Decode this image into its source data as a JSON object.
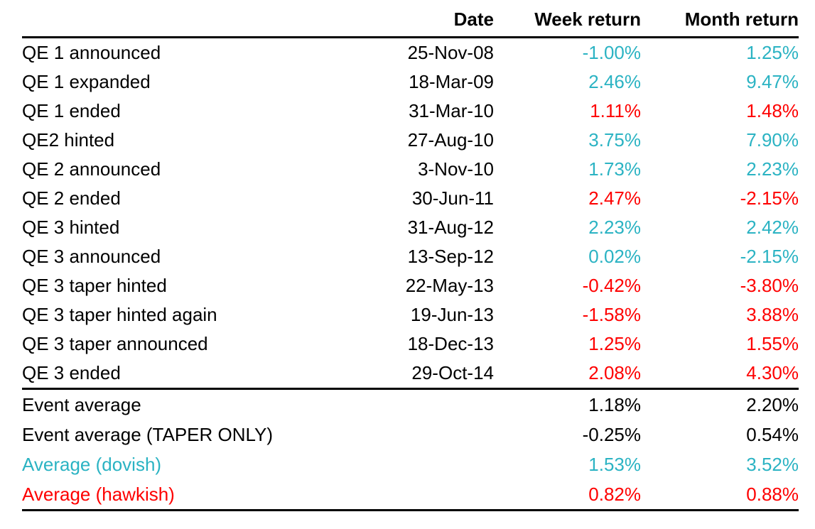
{
  "chart_data": {
    "type": "table",
    "columns": [
      "",
      "Date",
      "Week return",
      "Month return"
    ],
    "rows": [
      {
        "label": "QE 1 announced",
        "date": "25-Nov-08",
        "week_return": "-1.00%",
        "month_return": "1.25%",
        "tone": "dovish"
      },
      {
        "label": "QE 1 expanded",
        "date": "18-Mar-09",
        "week_return": "2.46%",
        "month_return": "9.47%",
        "tone": "dovish"
      },
      {
        "label": "QE 1 ended",
        "date": "31-Mar-10",
        "week_return": "1.11%",
        "month_return": "1.48%",
        "tone": "hawkish"
      },
      {
        "label": "QE2 hinted",
        "date": "27-Aug-10",
        "week_return": "3.75%",
        "month_return": "7.90%",
        "tone": "dovish"
      },
      {
        "label": "QE 2 announced",
        "date": "3-Nov-10",
        "week_return": "1.73%",
        "month_return": "2.23%",
        "tone": "dovish"
      },
      {
        "label": "QE 2 ended",
        "date": "30-Jun-11",
        "week_return": "2.47%",
        "month_return": "-2.15%",
        "tone": "hawkish"
      },
      {
        "label": "QE 3 hinted",
        "date": "31-Aug-12",
        "week_return": "2.23%",
        "month_return": "2.42%",
        "tone": "dovish"
      },
      {
        "label": "QE 3 announced",
        "date": "13-Sep-12",
        "week_return": "0.02%",
        "month_return": "-2.15%",
        "tone": "dovish"
      },
      {
        "label": "QE 3 taper hinted",
        "date": "22-May-13",
        "week_return": "-0.42%",
        "month_return": "-3.80%",
        "tone": "hawkish"
      },
      {
        "label": "QE 3 taper hinted again",
        "date": "19-Jun-13",
        "week_return": "-1.58%",
        "month_return": "3.88%",
        "tone": "hawkish"
      },
      {
        "label": "QE 3 taper announced",
        "date": "18-Dec-13",
        "week_return": "1.25%",
        "month_return": "1.55%",
        "tone": "hawkish"
      },
      {
        "label": "QE 3 ended",
        "date": "29-Oct-14",
        "week_return": "2.08%",
        "month_return": "4.30%",
        "tone": "hawkish"
      }
    ],
    "summary_rows": [
      {
        "label": "Event average",
        "date": "",
        "week_return": "1.18%",
        "month_return": "2.20%",
        "tone": "neutral"
      },
      {
        "label": "Event average (TAPER ONLY)",
        "date": "",
        "week_return": "-0.25%",
        "month_return": "0.54%",
        "tone": "neutral"
      },
      {
        "label": "Average (dovish)",
        "date": "",
        "week_return": "1.53%",
        "month_return": "3.52%",
        "tone": "dovish",
        "label_tone": "dovish"
      },
      {
        "label": "Average (hawkish)",
        "date": "",
        "week_return": "0.82%",
        "month_return": "0.88%",
        "tone": "hawkish",
        "label_tone": "hawkish"
      }
    ],
    "colors": {
      "dovish": "#2bb3c3",
      "hawkish": "#fe0000",
      "neutral": "#000000"
    }
  }
}
